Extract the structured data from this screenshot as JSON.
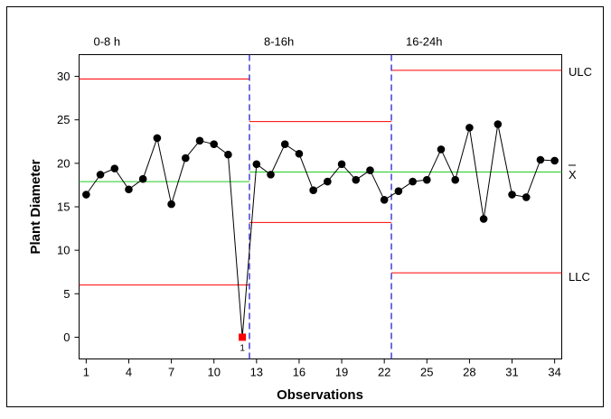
{
  "chart_data": {
    "type": "line",
    "xlabel": "Observations",
    "ylabel": "Plant Diameter",
    "xlim": [
      0.5,
      34.5
    ],
    "ylim": [
      -2.5,
      32.5
    ],
    "x_ticks": [
      1,
      4,
      7,
      10,
      13,
      16,
      19,
      22,
      25,
      28,
      31,
      34
    ],
    "y_ticks": [
      0,
      5,
      10,
      15,
      20,
      25,
      30
    ],
    "grid": false,
    "series": [
      {
        "x": [
          1,
          2,
          3,
          4,
          5,
          6,
          7,
          8,
          9,
          10,
          11,
          12,
          13,
          14,
          15,
          16,
          17,
          18,
          19,
          20,
          21,
          22,
          23,
          24,
          25,
          26,
          27,
          28,
          29,
          30,
          31,
          32,
          33,
          34
        ],
        "values": [
          16.4,
          18.7,
          19.4,
          17.0,
          18.2,
          22.9,
          15.3,
          20.6,
          22.6,
          22.2,
          21.0,
          0.0,
          19.9,
          18.7,
          22.2,
          21.1,
          16.9,
          17.9,
          19.9,
          18.1,
          19.2,
          15.8,
          16.8,
          17.9,
          18.1,
          21.6,
          18.1,
          24.1,
          13.6,
          24.5,
          16.4,
          16.1,
          20.4,
          20.3
        ]
      }
    ],
    "out_of_control": [
      {
        "x": 12,
        "value": 0.0,
        "label": "1"
      }
    ],
    "phases": [
      {
        "label": "0-8 h",
        "x_start": 0.5,
        "x_end": 12.5,
        "ulc": 29.7,
        "center": 17.9,
        "llc": 6.0
      },
      {
        "label": "8-16h",
        "x_start": 12.5,
        "x_end": 22.5,
        "ulc": 24.8,
        "center": 19.0,
        "llc": 13.2
      },
      {
        "label": "16-24h",
        "x_start": 22.5,
        "x_end": 34.5,
        "ulc": 30.7,
        "center": 19.0,
        "llc": 7.4
      }
    ],
    "phase_dividers": [
      12.5,
      22.5
    ],
    "limit_labels": {
      "upper": "ULC",
      "center": "X",
      "lower": "LLC"
    }
  },
  "colors": {
    "data_line": "#000000",
    "data_point": "#000000",
    "out_of_control_point": "#ff0000",
    "control_limit": "#ff0000",
    "center_line": "#22cc22",
    "phase_divider": "#2222cc"
  }
}
